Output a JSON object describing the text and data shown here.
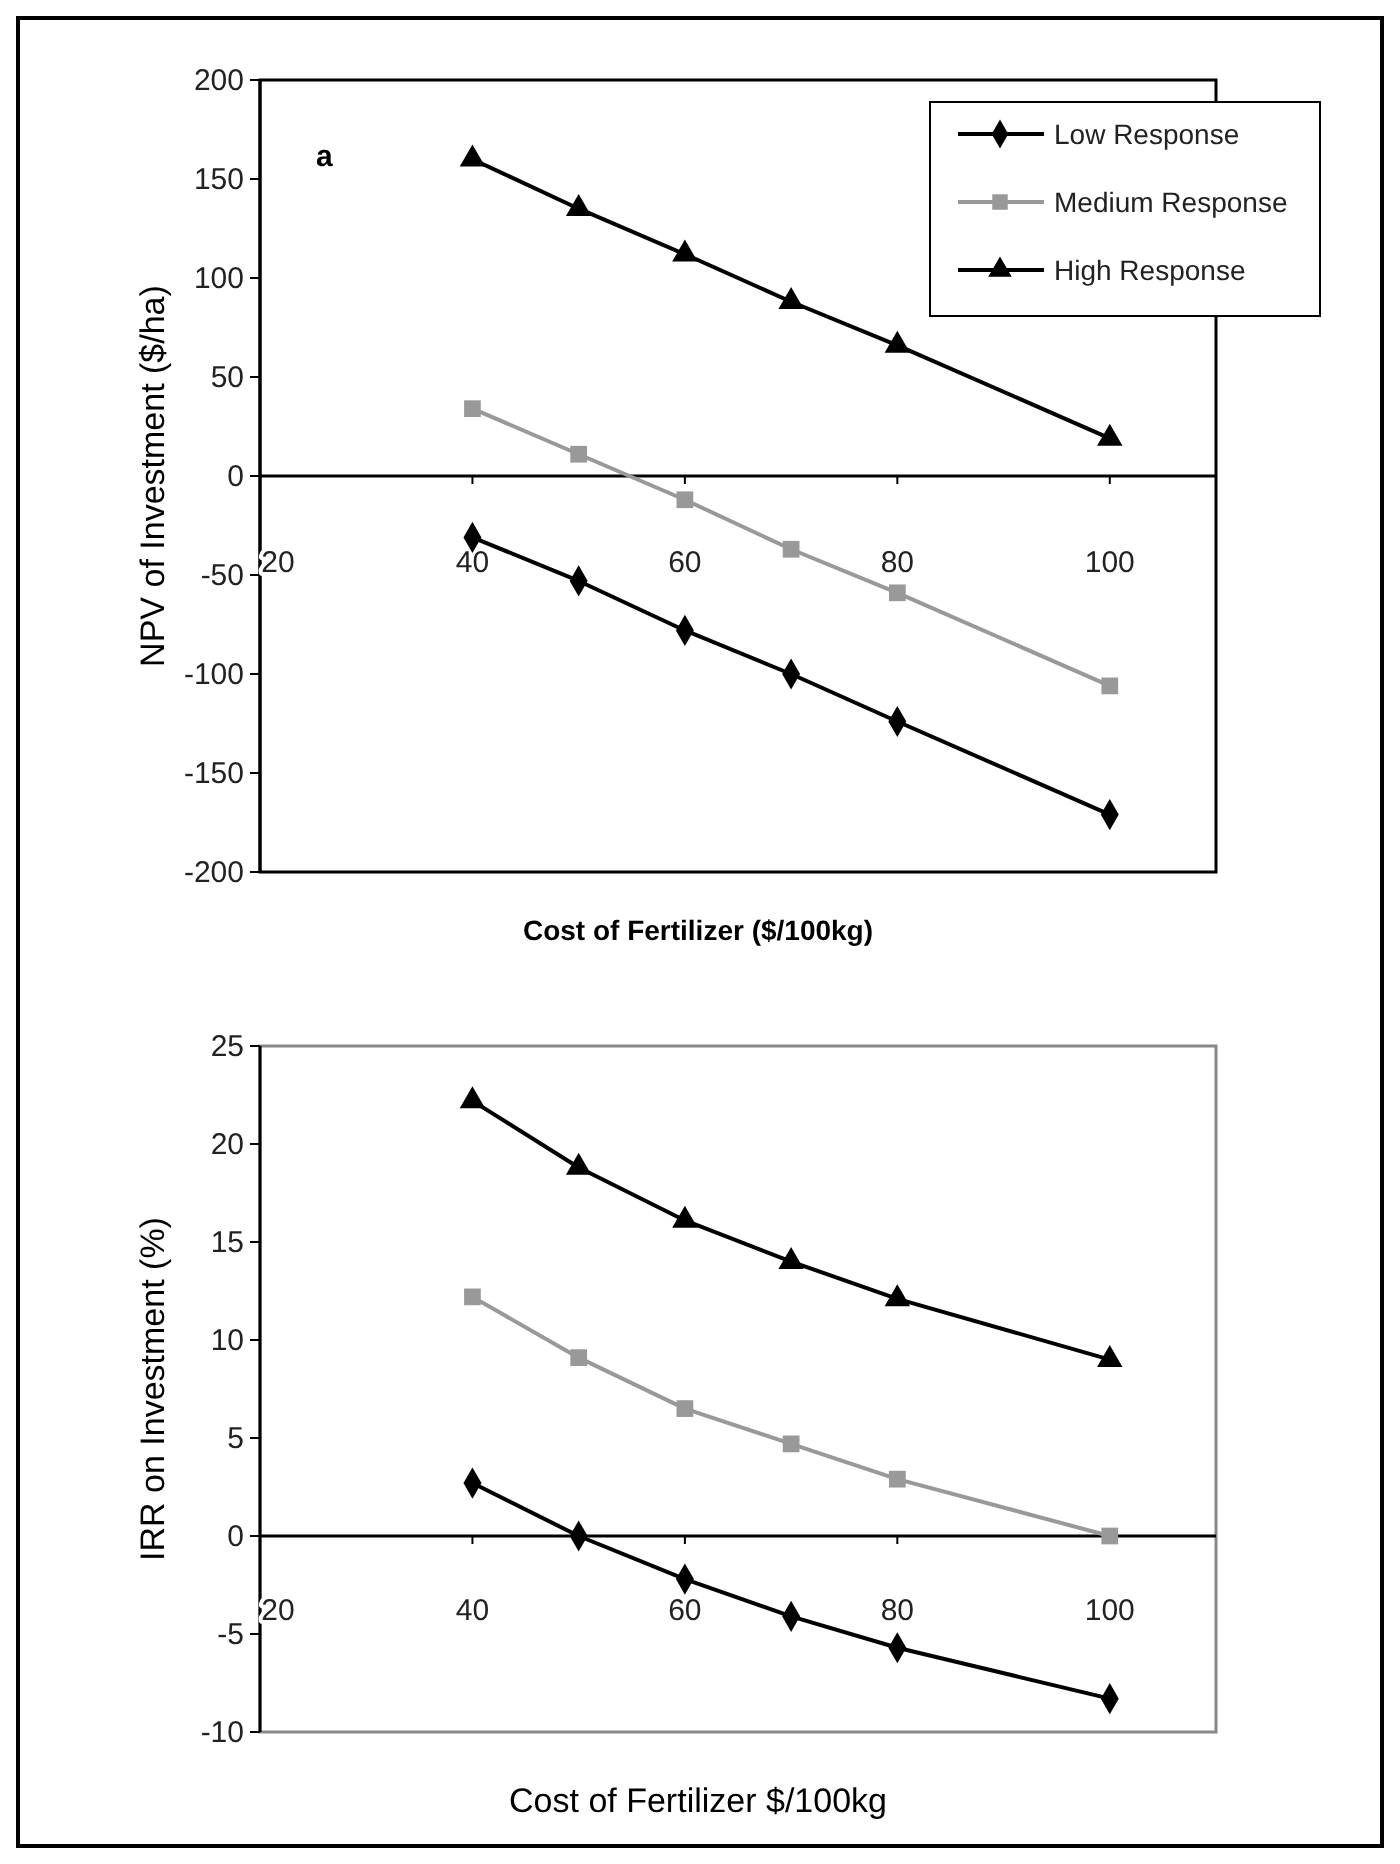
{
  "chart_data": [
    {
      "type": "line",
      "xlabel": "Cost of Fertilizer ($/100kg)",
      "ylabel": "NPV of Investment ($/ha)",
      "annotations": [
        "a"
      ],
      "x": [
        40,
        50,
        60,
        70,
        80,
        100
      ],
      "xlim": [
        20,
        110
      ],
      "xticks": [
        20,
        40,
        60,
        80,
        100
      ],
      "ylim": [
        -200,
        200
      ],
      "yticks": [
        -200,
        -150,
        -100,
        -50,
        0,
        50,
        100,
        150,
        200
      ],
      "legend": "top right",
      "grid": false,
      "line_style": "solid",
      "series": [
        {
          "name": "Low  Response",
          "color": "#000000",
          "marker": "diamond",
          "values": [
            -31,
            -53,
            -78,
            -100,
            -124,
            -171
          ]
        },
        {
          "name": "Medium Response",
          "color": "#999999",
          "marker": "square",
          "values": [
            34,
            11,
            -12,
            -37,
            -59,
            -106
          ]
        },
        {
          "name": "High Response",
          "color": "#000000",
          "marker": "triangle",
          "values": [
            160,
            135,
            112,
            88,
            66,
            19
          ]
        }
      ]
    },
    {
      "type": "line",
      "xlabel": "Cost of Fertilizer $/100kg",
      "ylabel": "IRR on Investment (%)",
      "x": [
        40,
        50,
        60,
        70,
        80,
        100
      ],
      "xlim": [
        20,
        110
      ],
      "xticks": [
        20,
        40,
        60,
        80,
        100
      ],
      "ylim": [
        -10,
        25
      ],
      "yticks": [
        -10,
        -5,
        0,
        5,
        10,
        15,
        20,
        25
      ],
      "legend": false,
      "grid": false,
      "line_style": "solid",
      "series": [
        {
          "color": "#000000",
          "marker": "diamond",
          "values": [
            2.7,
            0,
            -2.2,
            -4.1,
            -5.7,
            -8.3
          ]
        },
        {
          "color": "#999999",
          "marker": "square",
          "values": [
            12.2,
            9.1,
            6.5,
            4.7,
            2.9,
            0.0
          ]
        },
        {
          "color": "#000000",
          "marker": "triangle",
          "values": [
            22.2,
            18.8,
            16.1,
            14.0,
            12.1,
            9.0
          ]
        }
      ]
    }
  ]
}
